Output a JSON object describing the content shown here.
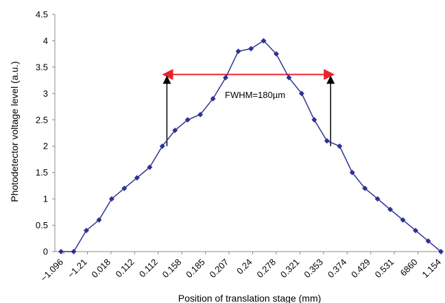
{
  "chart_data": {
    "type": "line",
    "title": "",
    "xlabel": "Position of translation stage (mm)",
    "ylabel": "Photodetector voltage level  (a.u.)",
    "ylim": [
      0,
      4.5
    ],
    "y_ticks": [
      "0",
      "0.5",
      "1",
      "1.5",
      "2",
      "2.5",
      "3",
      "3.5",
      "4",
      "4.5"
    ],
    "x_tick_labels": [
      "−1.096",
      "−1.21",
      "0.018",
      "0.112",
      "0.112",
      "0.158",
      "0.185",
      "0.207",
      "0.24",
      "0.278",
      "0.321",
      "0.353",
      "0.374",
      "0.429",
      "0.531",
      "6860",
      "1.154"
    ],
    "x_tick_labels_note": "",
    "grid": false,
    "legend": "none",
    "series": [
      {
        "color": "#2e3192",
        "marker": "diamond",
        "values": [
          0,
          0,
          0.4,
          0.6,
          1.0,
          1.2,
          1.4,
          1.6,
          2.0,
          2.3,
          2.5,
          2.6,
          2.9,
          3.3,
          3.8,
          3.85,
          4.0,
          3.75,
          3.3,
          3.0,
          2.5,
          2.1,
          2.0,
          1.5,
          1.2,
          1.0,
          0.8,
          0.6,
          0.4,
          0.2,
          0
        ]
      }
    ],
    "annotations": {
      "fwhm_label": "FWHM=180µm",
      "fwhm_level": 3.36,
      "fwhm_start_index": 8.2,
      "fwhm_end_index": 21.4,
      "fwhm_color": "#e8242b",
      "arrow_color": "#000000"
    }
  }
}
